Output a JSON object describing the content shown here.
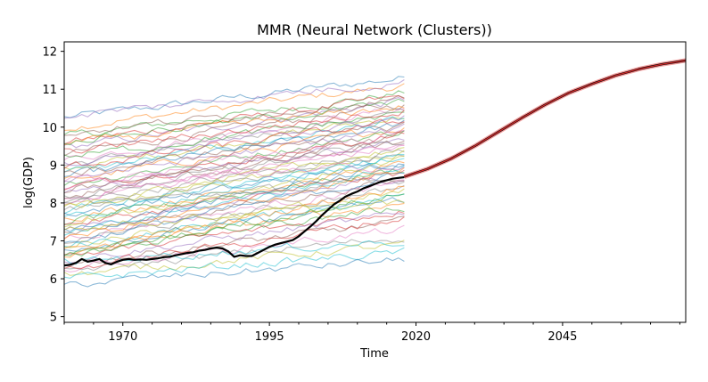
{
  "chart_data": {
    "type": "line",
    "title": "MMR (Neural Network (Clusters))",
    "xlabel": "Time",
    "ylabel": "log(GDP)",
    "xlim": [
      1960,
      2066
    ],
    "ylim": [
      4.85,
      12.25
    ],
    "xticks": [
      1970,
      1995,
      2020,
      2045
    ],
    "yticks": [
      5,
      6,
      7,
      8,
      9,
      10,
      11,
      12
    ],
    "grid": false,
    "background_series": {
      "count": 70,
      "x_range": [
        1960,
        2018
      ],
      "alpha": 0.5,
      "colors": [
        "#1f77b4",
        "#ff7f0e",
        "#2ca02c",
        "#d62728",
        "#9467bd",
        "#8c564b",
        "#e377c2",
        "#7f7f7f",
        "#bcbd22",
        "#17becf"
      ],
      "start_levels": [
        10.25,
        10.0,
        9.75,
        9.6,
        9.45,
        9.3,
        9.15,
        9.0,
        8.9,
        8.8,
        8.7,
        8.6,
        8.5,
        8.4,
        8.3,
        8.2,
        8.1,
        8.0,
        7.9,
        7.8,
        7.7,
        7.6,
        7.5,
        7.4,
        7.3,
        7.2,
        7.1,
        7.0,
        6.9,
        6.85,
        6.8,
        6.75,
        6.7,
        6.6,
        6.5,
        6.4,
        6.3,
        6.2,
        6.1,
        6.0,
        5.85,
        9.55,
        9.2,
        8.95,
        8.65,
        8.35,
        8.05,
        7.75,
        7.45,
        7.15,
        6.95,
        6.65,
        9.65,
        9.35,
        9.05,
        8.75,
        8.45,
        8.15,
        7.85,
        7.55,
        7.25,
        7.05,
        6.55,
        6.25,
        10.3,
        9.85,
        8.55,
        7.95,
        7.35,
        6.45
      ],
      "end_levels": [
        11.3,
        11.1,
        10.9,
        10.8,
        10.7,
        10.6,
        10.5,
        10.4,
        10.3,
        10.2,
        10.1,
        10.0,
        9.9,
        9.8,
        9.7,
        9.6,
        9.5,
        9.4,
        9.3,
        9.2,
        9.1,
        9.0,
        8.9,
        8.8,
        8.7,
        8.6,
        8.5,
        8.4,
        8.3,
        8.2,
        8.1,
        8.0,
        7.9,
        7.8,
        7.7,
        7.5,
        7.3,
        7.1,
        6.9,
        6.7,
        6.5,
        10.55,
        10.35,
        10.15,
        9.95,
        9.75,
        9.55,
        9.35,
        9.15,
        8.95,
        8.75,
        8.45,
        10.65,
        10.45,
        10.25,
        10.05,
        9.85,
        9.65,
        9.45,
        9.25,
        9.05,
        8.85,
        8.25,
        7.6,
        11.2,
        10.75,
        9.0,
        8.6,
        8.0,
        7.0
      ]
    },
    "series": [
      {
        "color": "#000000",
        "x": [
          1960,
          1961,
          1962,
          1963,
          1964,
          1965,
          1966,
          1967,
          1968,
          1969,
          1970,
          1971,
          1972,
          1973,
          1974,
          1975,
          1976,
          1977,
          1978,
          1979,
          1980,
          1981,
          1982,
          1983,
          1984,
          1985,
          1986,
          1987,
          1988,
          1989,
          1990,
          1991,
          1992,
          1993,
          1994,
          1995,
          1996,
          1997,
          1998,
          1999,
          2000,
          2001,
          2002,
          2003,
          2004,
          2005,
          2006,
          2007,
          2008,
          2009,
          2010,
          2011,
          2012,
          2013,
          2014,
          2015,
          2016,
          2017,
          2018
        ],
        "y": [
          6.35,
          6.37,
          6.42,
          6.52,
          6.45,
          6.48,
          6.52,
          6.42,
          6.38,
          6.45,
          6.5,
          6.52,
          6.5,
          6.51,
          6.5,
          6.52,
          6.54,
          6.57,
          6.58,
          6.62,
          6.65,
          6.68,
          6.7,
          6.74,
          6.76,
          6.8,
          6.82,
          6.8,
          6.72,
          6.58,
          6.62,
          6.6,
          6.6,
          6.68,
          6.76,
          6.84,
          6.9,
          6.94,
          6.98,
          7.02,
          7.12,
          7.25,
          7.38,
          7.52,
          7.68,
          7.82,
          7.96,
          8.06,
          8.17,
          8.24,
          8.3,
          8.38,
          8.44,
          8.5,
          8.56,
          8.6,
          8.64,
          8.66,
          8.68
        ]
      },
      {
        "color": "#d62728",
        "x": [
          2018,
          2022,
          2026,
          2030,
          2034,
          2038,
          2042,
          2046,
          2050,
          2054,
          2058,
          2062,
          2066
        ],
        "y": [
          8.69,
          8.9,
          9.17,
          9.5,
          9.87,
          10.24,
          10.59,
          10.9,
          11.14,
          11.36,
          11.53,
          11.66,
          11.76
        ]
      }
    ]
  }
}
